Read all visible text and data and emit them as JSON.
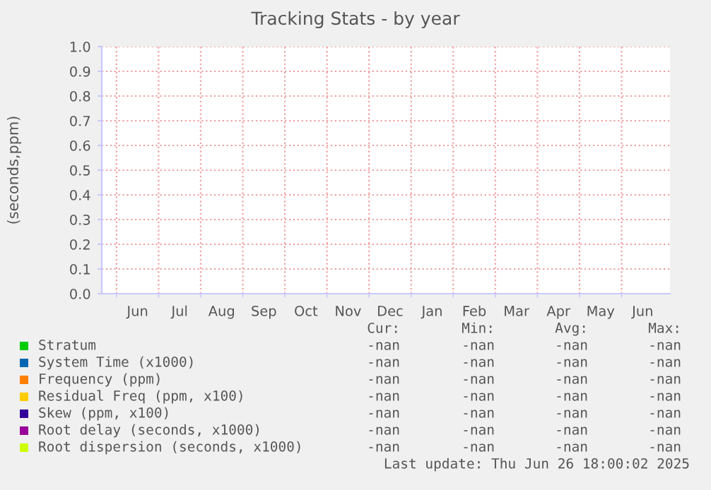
{
  "chart_data": {
    "type": "line",
    "title": "Tracking Stats - by year",
    "ylabel": "(seconds,ppm)",
    "categories": [
      "Jun",
      "Jul",
      "Aug",
      "Sep",
      "Oct",
      "Nov",
      "Dec",
      "Jan",
      "Feb",
      "Mar",
      "Apr",
      "May",
      "Jun"
    ],
    "series": [
      {
        "name": "Stratum",
        "color": "#00cc00",
        "values": [
          null,
          null,
          null,
          null,
          null,
          null,
          null,
          null,
          null,
          null,
          null,
          null,
          null
        ]
      },
      {
        "name": "System Time (x1000)",
        "color": "#0066b3",
        "values": [
          null,
          null,
          null,
          null,
          null,
          null,
          null,
          null,
          null,
          null,
          null,
          null,
          null
        ]
      },
      {
        "name": "Frequency (ppm)",
        "color": "#ff8000",
        "values": [
          null,
          null,
          null,
          null,
          null,
          null,
          null,
          null,
          null,
          null,
          null,
          null,
          null
        ]
      },
      {
        "name": "Residual Freq (ppm, x100)",
        "color": "#ffcc00",
        "values": [
          null,
          null,
          null,
          null,
          null,
          null,
          null,
          null,
          null,
          null,
          null,
          null,
          null
        ]
      },
      {
        "name": "Skew (ppm, x100)",
        "color": "#330099",
        "values": [
          null,
          null,
          null,
          null,
          null,
          null,
          null,
          null,
          null,
          null,
          null,
          null,
          null
        ]
      },
      {
        "name": "Root delay (seconds, x1000)",
        "color": "#990099",
        "values": [
          null,
          null,
          null,
          null,
          null,
          null,
          null,
          null,
          null,
          null,
          null,
          null,
          null
        ]
      },
      {
        "name": "Root dispersion (seconds, x1000)",
        "color": "#ccff00",
        "values": [
          null,
          null,
          null,
          null,
          null,
          null,
          null,
          null,
          null,
          null,
          null,
          null,
          null
        ]
      }
    ],
    "ylim": [
      0,
      1
    ],
    "yticks": [
      {
        "value": 0,
        "label": "0.0"
      },
      {
        "value": 0.1,
        "label": "0.1"
      },
      {
        "value": 0.2,
        "label": "0.2"
      },
      {
        "value": 0.3,
        "label": "0.3"
      },
      {
        "value": 0.4,
        "label": "0.4"
      },
      {
        "value": 0.5,
        "label": "0.5"
      },
      {
        "value": 0.6,
        "label": "0.6"
      },
      {
        "value": 0.7,
        "label": "0.7"
      },
      {
        "value": 0.8,
        "label": "0.8"
      },
      {
        "value": 0.9,
        "label": "0.9"
      },
      {
        "value": 1,
        "label": "1.0"
      }
    ],
    "grid": true,
    "legend": "bottom",
    "annotations": [
      "Cur:",
      "Min:",
      "Avg:",
      "Max:",
      "-nan",
      "-nan",
      "-nan",
      "-nan",
      "-nan",
      "-nan",
      "-nan",
      "-nan",
      "-nan",
      "-nan",
      "-nan",
      "-nan",
      "-nan",
      "-nan",
      "-nan",
      "-nan",
      "-nan",
      "-nan",
      "-nan",
      "-nan",
      "-nan",
      "-nan",
      "-nan",
      "-nan",
      "-nan",
      "-nan",
      "-nan",
      "-nan",
      "Last update: Thu Jun 26 18:00:02 2025"
    ]
  }
}
